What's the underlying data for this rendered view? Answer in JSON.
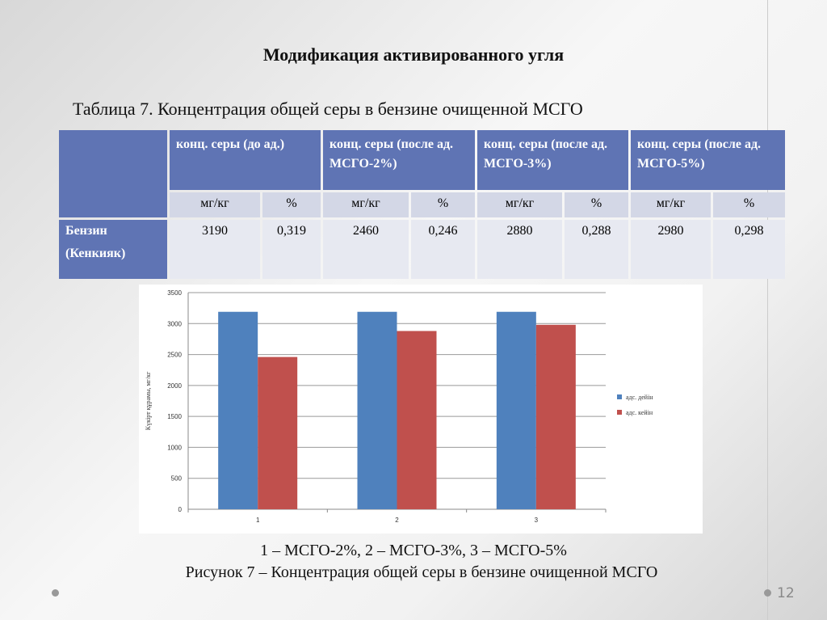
{
  "title": "Модификация активированного угля",
  "table": {
    "caption": "Таблица 7. Концентрация общей серы в бензине очищенной МСГО",
    "headers": [
      "конц. серы (до ад.)",
      "конц. серы (после ад. МСГО-2%)",
      "конц. серы (после ад. МСГО-3%)",
      "конц. серы (после ад. МСГО-5%)"
    ],
    "subheaders": [
      "мг/кг",
      "%",
      "мг/кг",
      "%",
      "мг/кг",
      "%",
      "мг/кг",
      "%"
    ],
    "row_label": "Бензин (Кенкияк)",
    "values": [
      "3190",
      "0,319",
      "2460",
      "0,246",
      "2880",
      "0,288",
      "2980",
      "0,298"
    ]
  },
  "chart_data": {
    "type": "bar",
    "categories": [
      "1",
      "2",
      "3"
    ],
    "series": [
      {
        "name": "адс. дейін",
        "values": [
          3190,
          3190,
          3190
        ],
        "color": "#4f81bd"
      },
      {
        "name": "адс. кейін",
        "values": [
          2460,
          2880,
          2980
        ],
        "color": "#c0504d"
      }
    ],
    "ylabel": "Күкірт құрамы, мг/кг",
    "ylim": [
      0,
      3500
    ],
    "yticks": [
      0,
      500,
      1000,
      1500,
      2000,
      2500,
      3000,
      3500
    ],
    "grid": true,
    "legend": "right"
  },
  "caption_line1": "1 – МСГО-2%, 2 – МСГО-3%, 3 – МСГО-5%",
  "caption_line2": "Рисунок 7 – Концентрация общей серы в бензине очищенной МСГО",
  "page_number": "12"
}
